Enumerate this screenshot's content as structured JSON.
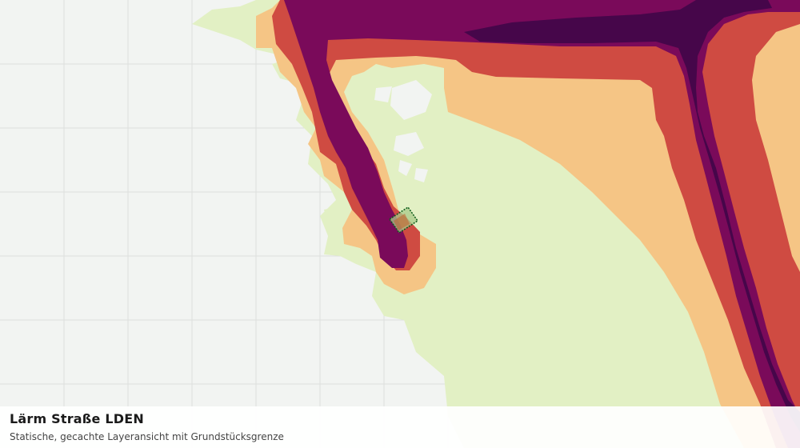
{
  "layer": {
    "title": "Lärm Straße LDEN",
    "subtitle": "Statische, gecachte Layeransicht mit Grundstücksgrenze"
  },
  "map": {
    "background_color": "#f2f4f2",
    "grid_color": "#dcdedc",
    "noise_band_colors": {
      "lowest": "#e2f0c4",
      "low": "#f5c585",
      "medium": "#cf4b42",
      "high": "#7a0a5a",
      "highest": "#46064a"
    },
    "parcel_outline_color": "#0b5a1a",
    "parcel_fill_color": "#a8c98a"
  }
}
